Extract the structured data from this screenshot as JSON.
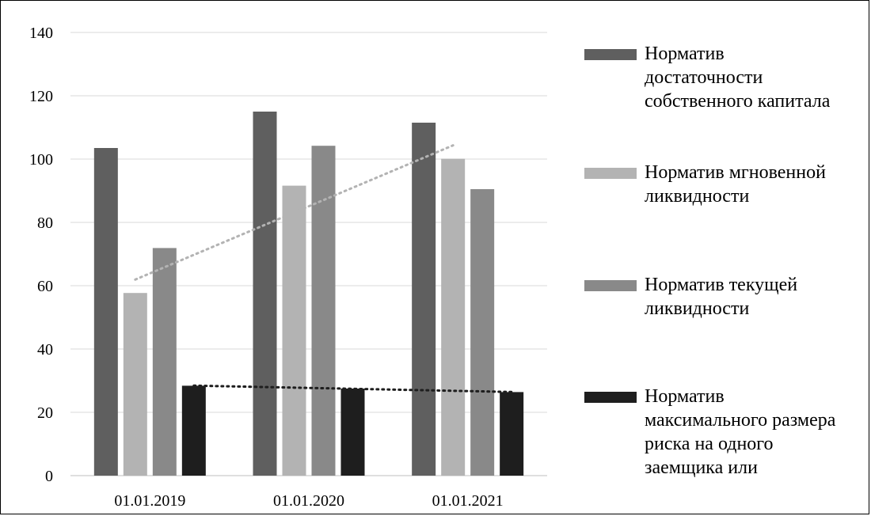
{
  "chart_data": {
    "type": "bar",
    "categories": [
      "01.01.2019",
      "01.01.2020",
      "01.01.2021"
    ],
    "series": [
      {
        "name": "Норматив достаточности собственного капитала",
        "values": [
          103.5,
          115,
          111.5
        ],
        "color": "#5f5f5f"
      },
      {
        "name": "Норматив мгновенной ликвидности",
        "values": [
          57.7,
          91.6,
          100.1
        ],
        "color": "#b3b3b3"
      },
      {
        "name": "Норматив текущей ликвидности",
        "values": [
          71.9,
          104.2,
          90.5
        ],
        "color": "#898989"
      },
      {
        "name": "Норматив максимального размера риска на одного заемщика или",
        "values": [
          28.4,
          27.5,
          26.4
        ],
        "color": "#1e1e1e"
      }
    ],
    "trendlines": [
      {
        "series_index": 1,
        "type": "linear",
        "style": "dotted",
        "color": "#b3b3b3"
      },
      {
        "series_index": 3,
        "type": "linear",
        "style": "dotted",
        "color": "#1e1e1e"
      }
    ],
    "ylim": [
      0,
      140
    ],
    "yticks": [
      0,
      20,
      40,
      60,
      80,
      100,
      120,
      140
    ],
    "grid": true,
    "legend_position": "right"
  }
}
